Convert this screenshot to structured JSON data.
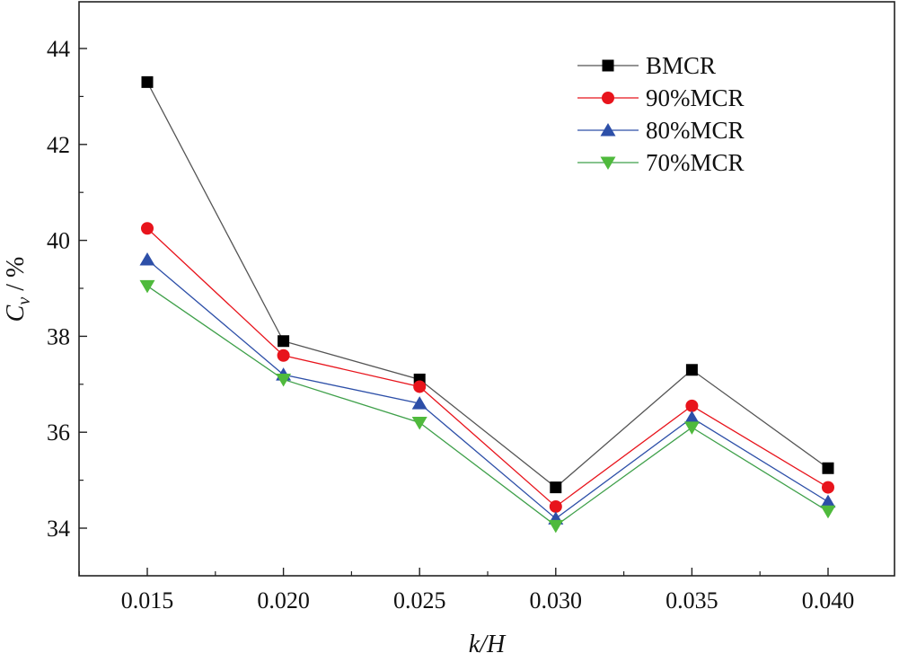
{
  "chart_data": {
    "type": "line",
    "title": "",
    "xlabel": "k/H",
    "ylabel_main": "C",
    "ylabel_sub": "v",
    "ylabel_unit": " / %",
    "x": [
      0.015,
      0.02,
      0.025,
      0.03,
      0.035,
      0.04
    ],
    "x_tick_labels": [
      "0.015",
      "0.020",
      "0.025",
      "0.030",
      "0.035",
      "0.040"
    ],
    "y_ticks": [
      34,
      36,
      38,
      40,
      42,
      44
    ],
    "y_tick_labels": [
      "34",
      "36",
      "38",
      "40",
      "42",
      "44"
    ],
    "xlim": [
      0.0125,
      0.0425
    ],
    "ylim": [
      33,
      45
    ],
    "legend_position": "top-right",
    "series": [
      {
        "name": "BMCR",
        "marker": "square",
        "color": "#000000",
        "line_color": "#555555",
        "values": [
          43.3,
          37.9,
          37.1,
          34.85,
          37.3,
          35.25
        ]
      },
      {
        "name": "90%MCR",
        "marker": "circle",
        "color": "#e8141c",
        "line_color": "#e8141c",
        "values": [
          40.25,
          37.6,
          36.95,
          34.45,
          36.55,
          34.85
        ]
      },
      {
        "name": "80%MCR",
        "marker": "triangle-up",
        "color": "#2d4fa8",
        "line_color": "#2d4fa8",
        "values": [
          39.6,
          37.2,
          36.6,
          34.2,
          36.3,
          34.55
        ]
      },
      {
        "name": "70%MCR",
        "marker": "triangle-down",
        "color": "#4fba3c",
        "line_color": "#3fa04a",
        "values": [
          39.05,
          37.1,
          36.2,
          34.05,
          36.1,
          34.35
        ]
      }
    ]
  }
}
